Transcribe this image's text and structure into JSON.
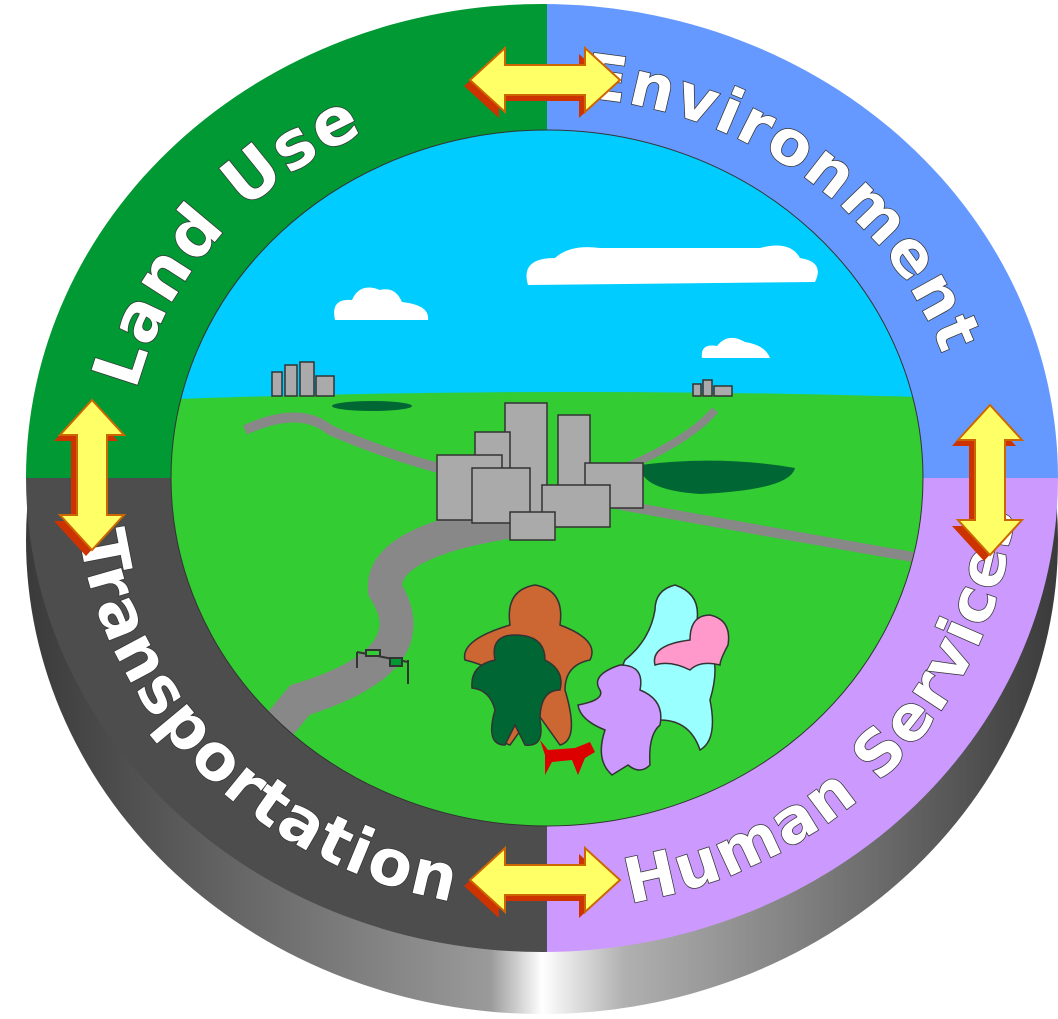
{
  "segments": [
    {
      "label": "Land Use"
    },
    {
      "label": "Environment"
    },
    {
      "label": "Human Services"
    },
    {
      "label": "Transportation"
    }
  ]
}
